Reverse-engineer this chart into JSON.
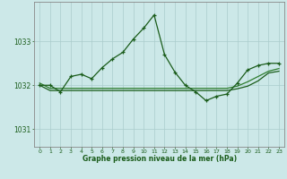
{
  "background_color": "#cce8e8",
  "grid_color": "#aacccc",
  "line_color_dark": "#1a5c1a",
  "line_color_med": "#2e7d2e",
  "x_ticks": [
    0,
    1,
    2,
    3,
    4,
    5,
    6,
    7,
    8,
    9,
    10,
    11,
    12,
    13,
    14,
    15,
    16,
    17,
    18,
    19,
    20,
    21,
    22,
    23
  ],
  "y_ticks": [
    1031,
    1032,
    1033
  ],
  "ylim": [
    1030.6,
    1033.9
  ],
  "xlim": [
    -0.5,
    23.5
  ],
  "xlabel": "Graphe pression niveau de la mer (hPa)",
  "series1": [
    1032.0,
    1032.0,
    1031.85,
    1032.2,
    1032.25,
    1032.15,
    1032.4,
    1032.6,
    1032.75,
    1033.05,
    1033.3,
    1033.6,
    1032.7,
    1032.3,
    1032.0,
    1031.85,
    1031.65,
    1031.75,
    1031.8,
    1032.05,
    1032.35,
    1032.45,
    1032.5,
    1032.5
  ],
  "series2_x": [
    0,
    1,
    2,
    3,
    4,
    5,
    6,
    7,
    8,
    9,
    10,
    11,
    12,
    13,
    14,
    15,
    16,
    17,
    18,
    19,
    20,
    21,
    22,
    23
  ],
  "series2": [
    1032.0,
    1031.88,
    1031.88,
    1031.88,
    1031.88,
    1031.88,
    1031.88,
    1031.88,
    1031.88,
    1031.88,
    1031.88,
    1031.88,
    1031.88,
    1031.88,
    1031.88,
    1031.88,
    1031.88,
    1031.88,
    1031.88,
    1031.92,
    1031.98,
    1032.1,
    1032.28,
    1032.32
  ],
  "series3": [
    1032.05,
    1031.93,
    1031.93,
    1031.93,
    1031.93,
    1031.93,
    1031.93,
    1031.93,
    1031.93,
    1031.93,
    1031.93,
    1031.93,
    1031.93,
    1031.93,
    1031.93,
    1031.93,
    1031.93,
    1031.93,
    1031.93,
    1031.98,
    1032.08,
    1032.2,
    1032.32,
    1032.38
  ]
}
